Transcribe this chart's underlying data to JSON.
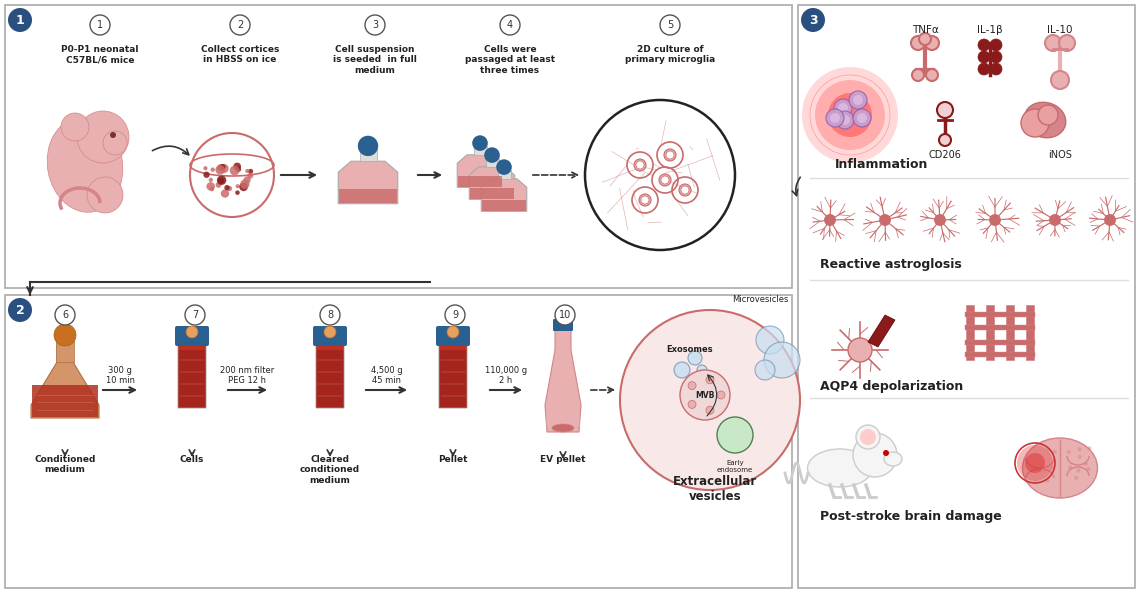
{
  "background_color": "#ffffff",
  "pink_color": "#c96b6b",
  "light_pink": "#e8b0b0",
  "very_light_pink": "#f5e0e0",
  "dark_red": "#8b1a1a",
  "medium_pink": "#d4848a",
  "salmon": "#e8a0a0",
  "arrow_color": "#333333",
  "text_color": "#222222",
  "blue_cap": "#2a6090",
  "orange_cap": "#c87020",
  "section_bg": "#2a5080",
  "panel_border": "#aaaaaa",
  "section1_labels": [
    "P0-P1 neonatal\nC57BL/6 mice",
    "Collect cortices\nin HBSS on ice",
    "Cell suspension\nis seeded  in full\nmedium",
    "Cells were\npassaged at least\nthree times",
    "2D culture of\nprimary microglia"
  ],
  "section2_labels": [
    "Conditioned\nmedium",
    "Cells",
    "Cleared\nconditioned\nmedium",
    "Pellet",
    "EV pellet",
    "Extracellular\nvesicles"
  ],
  "section2_arrows": [
    "300 g\n10 min",
    "200 nm filter\nPEG 12 h",
    "4,500 g\n45 min",
    "110,000 g\n2 h"
  ],
  "section3_labels": [
    "Inflammation",
    "Reactive astroglosis",
    "AQP4 depolarization",
    "Post-stroke brain damage"
  ],
  "section3_cytokines": [
    "TNFα",
    "IL-1β",
    "IL-10"
  ],
  "step_numbers_1": [
    "1",
    "2",
    "3",
    "4",
    "5"
  ],
  "step_numbers_2": [
    "6",
    "7",
    "8",
    "9",
    "10"
  ],
  "microvesicles_label": "Microvesicles",
  "exosomes_label": "Exosomes",
  "mvb_label": "MVB",
  "early_endosome_label": "Early\nendosome",
  "cd206_label": "CD206",
  "inos_label": "iNOS"
}
